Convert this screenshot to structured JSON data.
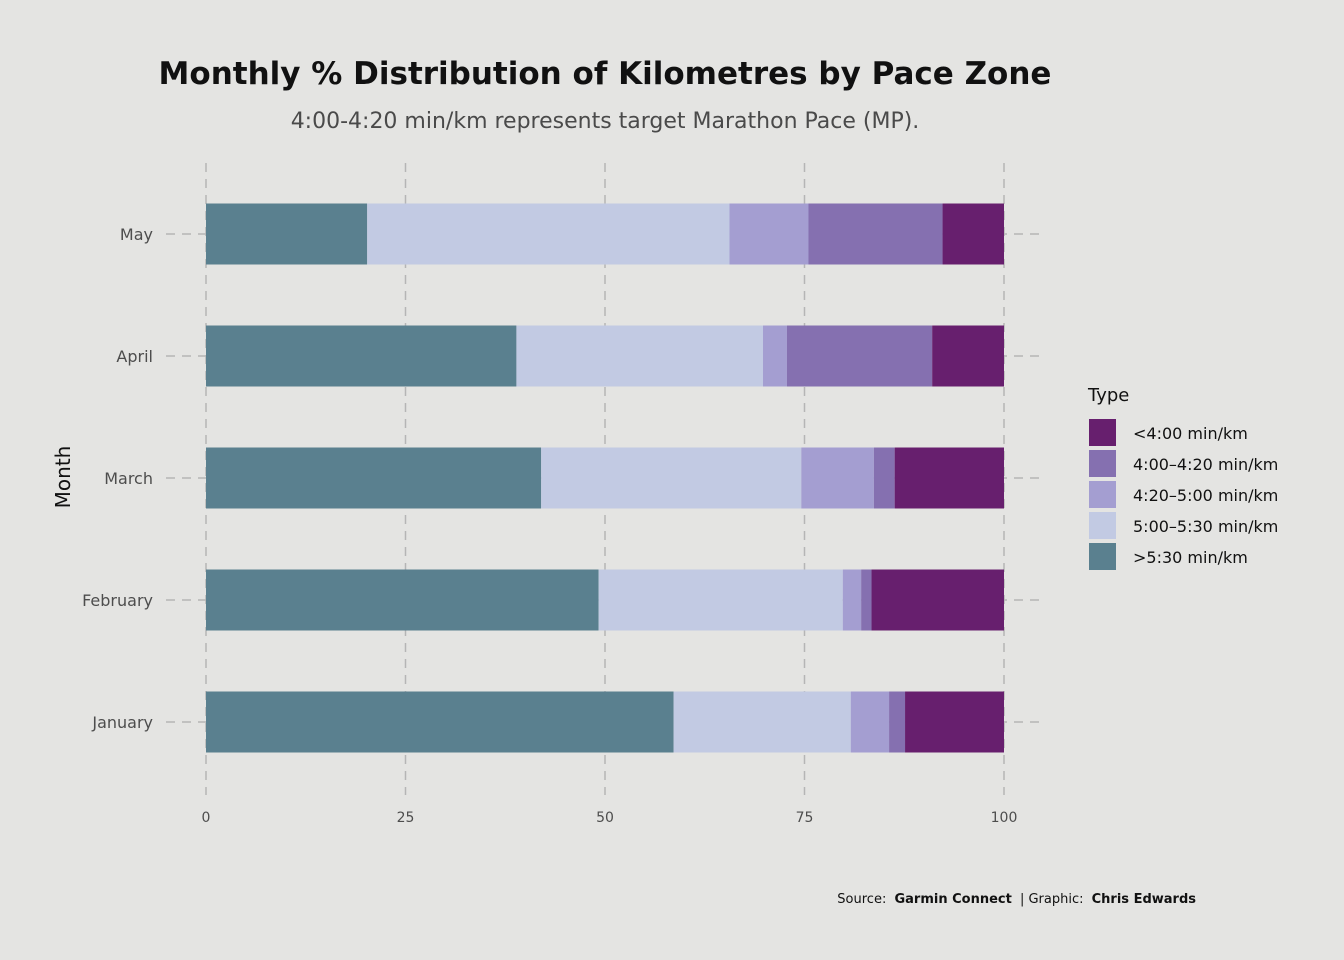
{
  "chart_data": {
    "type": "bar",
    "orientation": "horizontal",
    "stacked": true,
    "title": "Monthly % Distribution of Kilometres by Pace Zone",
    "subtitle": "4:00-4:20 min/km represents target Marathon Pace (MP).",
    "xlabel": "",
    "ylabel": "Month",
    "xlim": [
      0,
      100
    ],
    "x_ticks": [
      "0",
      "25",
      "50",
      "75",
      "100"
    ],
    "grid": "dashed vertical and horizontal",
    "legend_title": "Type",
    "legend_position": "right",
    "categories": [
      "January",
      "February",
      "March",
      "April",
      "May"
    ],
    "series": [
      {
        "name": ">5:30 min/km",
        "color": "#5a808f",
        "values": [
          58.6,
          49.2,
          42.0,
          38.9,
          20.2
        ]
      },
      {
        "name": "5:00–5:30 min/km",
        "color": "#c2cae3",
        "values": [
          22.2,
          30.6,
          32.6,
          30.9,
          45.4
        ]
      },
      {
        "name": "4:20–5:00 min/km",
        "color": "#a49ed1",
        "values": [
          4.8,
          2.3,
          9.1,
          3.0,
          9.9
        ]
      },
      {
        "name": "4:00–4:20 min/km",
        "color": "#8570b0",
        "values": [
          2.0,
          1.3,
          2.6,
          18.2,
          16.8
        ]
      },
      {
        "name": "<4:00 min/km",
        "color": "#671f6e",
        "values": [
          12.4,
          16.6,
          13.7,
          9.0,
          7.7
        ]
      }
    ],
    "legend_order": [
      "<4:00 min/km",
      "4:00–4:20 min/km",
      "4:20–5:00 min/km",
      "5:00–5:30 min/km",
      ">5:30 min/km"
    ]
  },
  "caption": {
    "source_prefix": "Source:",
    "source_name": "Garmin Connect",
    "separator": "| Graphic:",
    "author": "Chris Edwards"
  }
}
